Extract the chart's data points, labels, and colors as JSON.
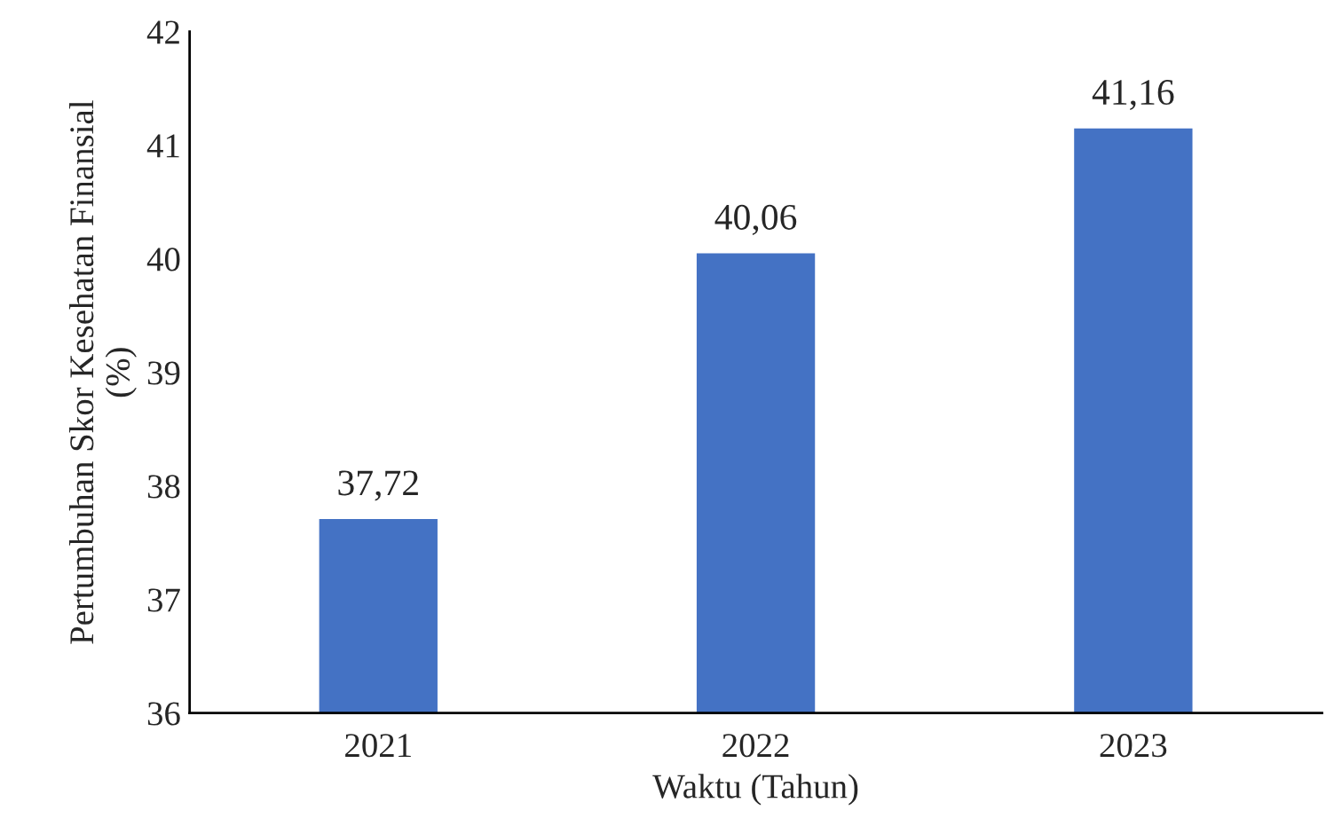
{
  "chart_data": {
    "type": "bar",
    "xlabel": "Waktu (Tahun)",
    "ylabel": "Pertumbuhan Skor Kesehatan Finansial\n(%)",
    "categories": [
      "2021",
      "2022",
      "2023"
    ],
    "values": [
      37.72,
      40.06,
      41.16
    ],
    "value_labels": [
      "37,72",
      "40,06",
      "41,16"
    ],
    "color": "#4472c4",
    "ylim": [
      36,
      42
    ],
    "yticks": [
      36,
      37,
      38,
      39,
      40,
      41,
      42
    ],
    "grid": false,
    "legend": false
  }
}
